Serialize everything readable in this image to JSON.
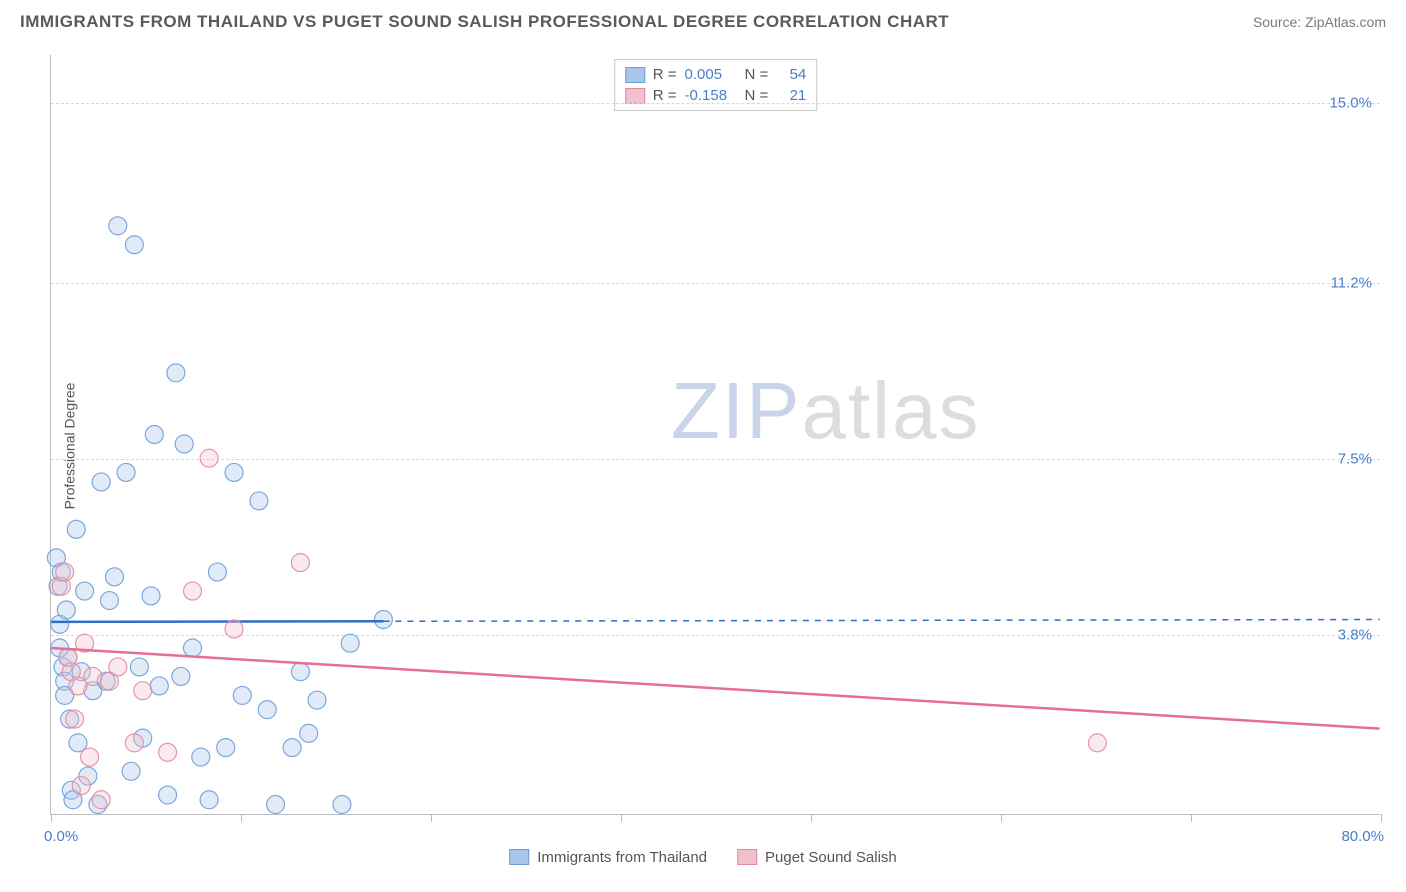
{
  "header": {
    "title": "IMMIGRANTS FROM THAILAND VS PUGET SOUND SALISH PROFESSIONAL DEGREE CORRELATION CHART",
    "source_label": "Source:",
    "source_name": "ZipAtlas.com"
  },
  "chart": {
    "type": "scatter",
    "ylabel": "Professional Degree",
    "xlim": [
      0,
      80
    ],
    "ylim": [
      0,
      16
    ],
    "xaxis_min_label": "0.0%",
    "xaxis_max_label": "80.0%",
    "yticks": [
      {
        "value": 3.8,
        "label": "3.8%"
      },
      {
        "value": 7.5,
        "label": "7.5%"
      },
      {
        "value": 11.2,
        "label": "11.2%"
      },
      {
        "value": 15.0,
        "label": "15.0%"
      }
    ],
    "xticks_count": 7,
    "grid_color": "#d8d8d8",
    "axis_color": "#bdbdbd",
    "label_color": "#4a7ec7",
    "background_color": "#ffffff",
    "point_radius": 9,
    "fill_opacity": 0.35,
    "stroke_opacity": 0.9,
    "line_width": 2.5,
    "series": [
      {
        "name": "Immigrants from Thailand",
        "color_fill": "#a9c5eb",
        "color_stroke": "#6f9fd8",
        "line_color": "#2e6fc4",
        "R": "0.005",
        "N": "54",
        "trend": {
          "y_at_x0": 4.05,
          "y_at_x80": 4.1,
          "x_solid_end": 20,
          "dashed_after": true
        },
        "points": [
          [
            0.3,
            5.4
          ],
          [
            0.4,
            4.8
          ],
          [
            0.5,
            4.0
          ],
          [
            0.5,
            3.5
          ],
          [
            0.6,
            5.1
          ],
          [
            0.7,
            3.1
          ],
          [
            0.8,
            2.8
          ],
          [
            0.8,
            2.5
          ],
          [
            0.9,
            4.3
          ],
          [
            1.0,
            3.3
          ],
          [
            1.1,
            2.0
          ],
          [
            1.2,
            0.5
          ],
          [
            1.3,
            0.3
          ],
          [
            1.5,
            6.0
          ],
          [
            1.6,
            1.5
          ],
          [
            1.8,
            3.0
          ],
          [
            2.0,
            4.7
          ],
          [
            2.2,
            0.8
          ],
          [
            2.5,
            2.6
          ],
          [
            2.8,
            0.2
          ],
          [
            3.0,
            7.0
          ],
          [
            3.3,
            2.8
          ],
          [
            3.5,
            4.5
          ],
          [
            3.8,
            5.0
          ],
          [
            4.0,
            12.4
          ],
          [
            4.5,
            7.2
          ],
          [
            4.8,
            0.9
          ],
          [
            5.0,
            12.0
          ],
          [
            5.3,
            3.1
          ],
          [
            5.5,
            1.6
          ],
          [
            6.0,
            4.6
          ],
          [
            6.2,
            8.0
          ],
          [
            6.5,
            2.7
          ],
          [
            7.0,
            0.4
          ],
          [
            7.5,
            9.3
          ],
          [
            7.8,
            2.9
          ],
          [
            8.0,
            7.8
          ],
          [
            8.5,
            3.5
          ],
          [
            9.0,
            1.2
          ],
          [
            9.5,
            0.3
          ],
          [
            10.0,
            5.1
          ],
          [
            10.5,
            1.4
          ],
          [
            11.0,
            7.2
          ],
          [
            11.5,
            2.5
          ],
          [
            12.5,
            6.6
          ],
          [
            13.0,
            2.2
          ],
          [
            13.5,
            0.2
          ],
          [
            14.5,
            1.4
          ],
          [
            15.0,
            3.0
          ],
          [
            15.5,
            1.7
          ],
          [
            16.0,
            2.4
          ],
          [
            17.5,
            0.2
          ],
          [
            18.0,
            3.6
          ],
          [
            20.0,
            4.1
          ]
        ]
      },
      {
        "name": "Puget Sound Salish",
        "color_fill": "#f0c1cc",
        "color_stroke": "#e48aa2",
        "line_color": "#e56f8f",
        "R": "-0.158",
        "N": "21",
        "trend": {
          "y_at_x0": 3.5,
          "y_at_x80": 1.8,
          "x_solid_end": 80,
          "dashed_after": false
        },
        "points": [
          [
            0.6,
            4.8
          ],
          [
            0.8,
            5.1
          ],
          [
            1.0,
            3.3
          ],
          [
            1.2,
            3.0
          ],
          [
            1.4,
            2.0
          ],
          [
            1.6,
            2.7
          ],
          [
            1.8,
            0.6
          ],
          [
            2.0,
            3.6
          ],
          [
            2.3,
            1.2
          ],
          [
            2.5,
            2.9
          ],
          [
            3.0,
            0.3
          ],
          [
            3.5,
            2.8
          ],
          [
            4.0,
            3.1
          ],
          [
            5.0,
            1.5
          ],
          [
            5.5,
            2.6
          ],
          [
            7.0,
            1.3
          ],
          [
            8.5,
            4.7
          ],
          [
            9.5,
            7.5
          ],
          [
            11.0,
            3.9
          ],
          [
            15.0,
            5.3
          ],
          [
            63.0,
            1.5
          ]
        ]
      }
    ]
  },
  "legend_top": {
    "R_label": "R =",
    "N_label": "N ="
  },
  "legend_bottom": {
    "items": [
      {
        "label": "Immigrants from Thailand",
        "fill": "#a9c5eb",
        "stroke": "#6f9fd8"
      },
      {
        "label": "Puget Sound Salish",
        "fill": "#f0c1cc",
        "stroke": "#e48aa2"
      }
    ]
  },
  "watermark": {
    "part1": "ZIP",
    "part2": "atlas"
  }
}
